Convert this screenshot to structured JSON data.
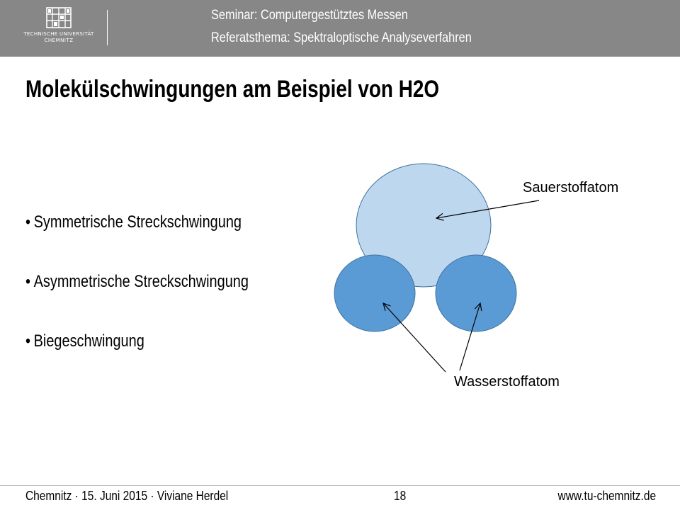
{
  "header": {
    "logo": {
      "line1": "TECHNISCHE UNIVERSITÄT",
      "line2": "CHEMNITZ"
    },
    "line1": "Seminar: Computergestütztes Messen",
    "line2": "Referatsthema: Spektraloptische Analyseverfahren"
  },
  "slide": {
    "title": "Molekülschwingungen am Beispiel von H2O",
    "bullets": [
      "Symmetrische Streckschwingung",
      "Asymmetrische Streckschwingung",
      "Biegeschwingung"
    ]
  },
  "diagram": {
    "oxygen_label": "Sauerstoffatom",
    "hydrogen_label": "Wasserstoffatom",
    "colors": {
      "oxygen": "#bdd7ee",
      "hydrogen": "#5b9bd5",
      "outline": "#41719c"
    }
  },
  "footer": {
    "left": "Chemnitz · 15. Juni 2015 · Viviane Herdel",
    "page": "18",
    "right": "www.tu-chemnitz.de"
  }
}
